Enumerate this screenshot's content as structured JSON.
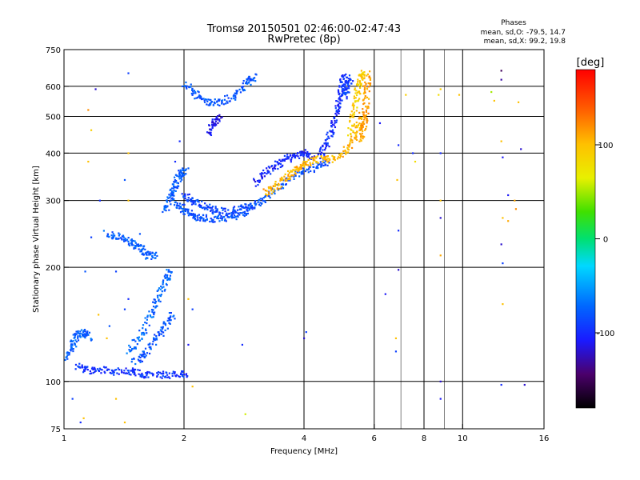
{
  "chart_data": {
    "type": "scatter",
    "title": "Tromsø 20150501 02:46:00-02:47:43",
    "subtitle": "RwPretec (8p)",
    "xlabel": "Frequency [MHz]",
    "ylabel": "Stationary phase Virtual Height [km]",
    "x_scale": "log",
    "y_scale": "log",
    "xlim": [
      1,
      16
    ],
    "ylim": [
      75,
      750
    ],
    "x_ticks": [
      1,
      2,
      4,
      6,
      8,
      10,
      16
    ],
    "y_ticks": [
      75,
      100,
      200,
      300,
      400,
      500,
      600,
      750
    ],
    "x_gridlines": [
      2,
      4,
      6,
      8,
      10
    ],
    "y_gridlines": [
      100,
      200,
      300,
      400,
      500,
      600
    ],
    "x_minor_gridlines": [
      7,
      9
    ],
    "stats": {
      "heading": "Phases",
      "line_o": "mean, sd,O: -79.5, 14.7",
      "line_x": "mean, sd,X:  99.2, 19.8"
    },
    "colorbar": {
      "label": "[deg]",
      "min": -180,
      "max": 180,
      "ticks": [
        100,
        0,
        -100
      ],
      "tick_labels": [
        "100",
        "0",
        "-100"
      ]
    },
    "colors": {
      "o_trace": "#1f52d6",
      "o_trace_light": "#2b8fe6",
      "x_trace": "#f5c400",
      "x_trace_orange": "#f0a000"
    },
    "traces": [
      {
        "mode": "O",
        "phase": -75,
        "points": [
          [
            1.02,
            115
          ],
          [
            1.05,
            125
          ],
          [
            1.08,
            132
          ],
          [
            1.12,
            135
          ],
          [
            1.16,
            130
          ]
        ]
      },
      {
        "mode": "O",
        "phase": -95,
        "points": [
          [
            1.08,
            110
          ],
          [
            1.15,
            107
          ],
          [
            1.25,
            107
          ],
          [
            1.4,
            106
          ],
          [
            1.5,
            106
          ],
          [
            1.6,
            104
          ],
          [
            1.75,
            104
          ],
          [
            1.9,
            104
          ],
          [
            2.05,
            105
          ]
        ]
      },
      {
        "mode": "O",
        "phase": -72,
        "points": [
          [
            1.45,
            120
          ],
          [
            1.55,
            130
          ],
          [
            1.65,
            150
          ],
          [
            1.72,
            165
          ],
          [
            1.8,
            185
          ],
          [
            1.85,
            195
          ]
        ]
      },
      {
        "mode": "O",
        "phase": -80,
        "points": [
          [
            1.5,
            112
          ],
          [
            1.6,
            118
          ],
          [
            1.7,
            130
          ],
          [
            1.8,
            140
          ],
          [
            1.88,
            150
          ]
        ]
      },
      {
        "mode": "O",
        "phase": -78,
        "points": [
          [
            1.28,
            245
          ],
          [
            1.38,
            240
          ],
          [
            1.48,
            232
          ],
          [
            1.55,
            225
          ],
          [
            1.62,
            215
          ],
          [
            1.7,
            214
          ]
        ]
      },
      {
        "mode": "O",
        "phase": -78,
        "points": [
          [
            1.8,
            280
          ],
          [
            1.84,
            300
          ],
          [
            1.88,
            320
          ],
          [
            1.92,
            340
          ],
          [
            1.97,
            355
          ],
          [
            2.02,
            360
          ]
        ]
      },
      {
        "mode": "O",
        "phase": -82,
        "points": [
          [
            1.9,
            295
          ],
          [
            2.0,
            285
          ],
          [
            2.1,
            275
          ],
          [
            2.2,
            270
          ],
          [
            2.4,
            268
          ],
          [
            2.6,
            270
          ],
          [
            2.8,
            278
          ],
          [
            3.0,
            290
          ],
          [
            3.2,
            305
          ],
          [
            3.5,
            330
          ],
          [
            3.9,
            355
          ],
          [
            4.3,
            368
          ],
          [
            4.6,
            380
          ]
        ]
      },
      {
        "mode": "O",
        "phase": -88,
        "points": [
          [
            2.0,
            310
          ],
          [
            2.1,
            300
          ],
          [
            2.25,
            290
          ],
          [
            2.4,
            282
          ],
          [
            2.6,
            280
          ],
          [
            2.8,
            285
          ],
          [
            3.0,
            295
          ]
        ]
      },
      {
        "mode": "O",
        "phase": -105,
        "points": [
          [
            3.0,
            330
          ],
          [
            3.2,
            355
          ],
          [
            3.4,
            370
          ],
          [
            3.6,
            385
          ],
          [
            3.8,
            395
          ],
          [
            4.0,
            400
          ],
          [
            4.2,
            390
          ]
        ]
      },
      {
        "mode": "O",
        "phase": -98,
        "points": [
          [
            4.4,
            390
          ],
          [
            4.55,
            420
          ],
          [
            4.7,
            460
          ],
          [
            4.82,
            510
          ],
          [
            4.92,
            560
          ],
          [
            5.0,
            610
          ],
          [
            5.05,
            640
          ]
        ]
      },
      {
        "mode": "O",
        "phase": -92,
        "points": [
          [
            5.05,
            560
          ],
          [
            5.15,
            600
          ],
          [
            5.25,
            630
          ]
        ]
      },
      {
        "mode": "O",
        "phase": -80,
        "points": [
          [
            2.0,
            610
          ],
          [
            2.15,
            570
          ],
          [
            2.3,
            545
          ],
          [
            2.5,
            545
          ],
          [
            2.7,
            570
          ],
          [
            2.9,
            620
          ],
          [
            3.0,
            635
          ]
        ]
      },
      {
        "mode": "O",
        "phase": -110,
        "points": [
          [
            2.3,
            450
          ],
          [
            2.38,
            480
          ],
          [
            2.45,
            500
          ]
        ]
      },
      {
        "mode": "X",
        "phase": 105,
        "points": [
          [
            3.2,
            315
          ],
          [
            3.4,
            325
          ],
          [
            3.6,
            345
          ],
          [
            3.8,
            360
          ],
          [
            4.0,
            375
          ],
          [
            4.3,
            385
          ],
          [
            4.6,
            385
          ],
          [
            5.0,
            395
          ],
          [
            5.3,
            430
          ],
          [
            5.5,
            470
          ],
          [
            5.6,
            510
          ]
        ]
      },
      {
        "mode": "X",
        "phase": 90,
        "points": [
          [
            5.2,
            450
          ],
          [
            5.35,
            520
          ],
          [
            5.45,
            580
          ],
          [
            5.55,
            630
          ],
          [
            5.6,
            650
          ]
        ]
      },
      {
        "mode": "X",
        "phase": 115,
        "points": [
          [
            5.6,
            430
          ],
          [
            5.65,
            470
          ],
          [
            5.7,
            520
          ],
          [
            5.75,
            580
          ],
          [
            5.8,
            650
          ]
        ]
      }
    ],
    "scatter_points": [
      [
        1.2,
        590,
        -120
      ],
      [
        1.45,
        650,
        -90
      ],
      [
        1.15,
        520,
        120
      ],
      [
        1.17,
        460,
        90
      ],
      [
        1.15,
        380,
        100
      ],
      [
        1.45,
        400,
        100
      ],
      [
        1.42,
        340,
        -80
      ],
      [
        1.45,
        300,
        100
      ],
      [
        1.23,
        300,
        -100
      ],
      [
        1.17,
        240,
        -90
      ],
      [
        1.55,
        245,
        -80
      ],
      [
        1.9,
        380,
        -100
      ],
      [
        1.95,
        430,
        -100
      ],
      [
        1.13,
        195,
        -80
      ],
      [
        1.35,
        195,
        -90
      ],
      [
        1.42,
        155,
        -90
      ],
      [
        1.45,
        165,
        -100
      ],
      [
        1.22,
        150,
        100
      ],
      [
        1.28,
        130,
        100
      ],
      [
        1.3,
        140,
        -80
      ],
      [
        1.05,
        90,
        -90
      ],
      [
        1.12,
        80,
        100
      ],
      [
        1.1,
        78,
        -100
      ],
      [
        1.35,
        90,
        100
      ],
      [
        1.42,
        78,
        100
      ],
      [
        2.05,
        165,
        100
      ],
      [
        2.1,
        155,
        -90
      ],
      [
        2.05,
        125,
        -110
      ],
      [
        2.1,
        97,
        100
      ],
      [
        2.8,
        125,
        -100
      ],
      [
        2.85,
        82,
        60
      ],
      [
        4.0,
        130,
        -120
      ],
      [
        4.05,
        135,
        -90
      ],
      [
        6.2,
        480,
        -110
      ],
      [
        6.4,
        170,
        -110
      ],
      [
        6.9,
        420,
        -100
      ],
      [
        6.85,
        340,
        100
      ],
      [
        6.9,
        250,
        -100
      ],
      [
        6.9,
        197,
        -120
      ],
      [
        6.8,
        130,
        100
      ],
      [
        6.8,
        120,
        -90
      ],
      [
        7.2,
        570,
        90
      ],
      [
        7.5,
        400,
        -100
      ],
      [
        7.6,
        380,
        80
      ],
      [
        8.8,
        590,
        90
      ],
      [
        8.7,
        570,
        80
      ],
      [
        8.8,
        400,
        -100
      ],
      [
        8.8,
        300,
        100
      ],
      [
        8.8,
        270,
        -120
      ],
      [
        8.8,
        215,
        110
      ],
      [
        8.8,
        100,
        -120
      ],
      [
        8.8,
        90,
        -110
      ],
      [
        9.8,
        570,
        100
      ],
      [
        11.8,
        580,
        50
      ],
      [
        12.0,
        550,
        100
      ],
      [
        12.5,
        660,
        -150
      ],
      [
        12.5,
        625,
        -130
      ],
      [
        12.5,
        430,
        100
      ],
      [
        12.6,
        390,
        -110
      ],
      [
        12.6,
        270,
        100
      ],
      [
        12.5,
        230,
        -120
      ],
      [
        12.6,
        205,
        -90
      ],
      [
        12.6,
        160,
        100
      ],
      [
        12.5,
        98,
        -100
      ],
      [
        13.0,
        310,
        -110
      ],
      [
        13.0,
        265,
        110
      ],
      [
        13.5,
        300,
        110
      ],
      [
        13.6,
        285,
        120
      ],
      [
        14.0,
        410,
        -120
      ],
      [
        13.8,
        545,
        100
      ],
      [
        14.3,
        98,
        -120
      ]
    ]
  }
}
